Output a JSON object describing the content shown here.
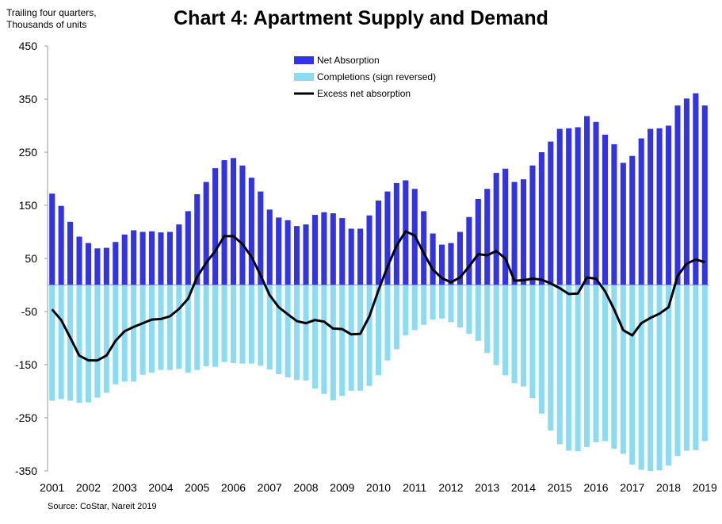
{
  "chart_data": {
    "type": "bar",
    "title": "Chart 4: Apartment Supply and Demand",
    "ylabel_line1": "Trailing four quarters,",
    "ylabel_line2": "Thousands of units",
    "source": "Source: CoStar, Nareit 2019",
    "ylim": [
      -350,
      450
    ],
    "yticks": [
      450,
      350,
      250,
      150,
      50,
      -50,
      -150,
      -250,
      -350
    ],
    "xticks": [
      "2001",
      "2002",
      "2003",
      "2004",
      "2005",
      "2006",
      "2007",
      "2008",
      "2009",
      "2010",
      "2011",
      "2012",
      "2013",
      "2014",
      "2015",
      "2016",
      "2017",
      "2018",
      "2019"
    ],
    "grid": false,
    "legend_position": "top-center",
    "colors": {
      "net_absorption": "#3232E6",
      "completions": "#8ADCF2",
      "excess": "#000000"
    },
    "x": [
      "2001Q1",
      "2001Q2",
      "2001Q3",
      "2001Q4",
      "2002Q1",
      "2002Q2",
      "2002Q3",
      "2002Q4",
      "2003Q1",
      "2003Q2",
      "2003Q3",
      "2003Q4",
      "2004Q1",
      "2004Q2",
      "2004Q3",
      "2004Q4",
      "2005Q1",
      "2005Q2",
      "2005Q3",
      "2005Q4",
      "2006Q1",
      "2006Q2",
      "2006Q3",
      "2006Q4",
      "2007Q1",
      "2007Q2",
      "2007Q3",
      "2007Q4",
      "2008Q1",
      "2008Q2",
      "2008Q3",
      "2008Q4",
      "2009Q1",
      "2009Q2",
      "2009Q3",
      "2009Q4",
      "2010Q1",
      "2010Q2",
      "2010Q3",
      "2010Q4",
      "2011Q1",
      "2011Q2",
      "2011Q3",
      "2011Q4",
      "2012Q1",
      "2012Q2",
      "2012Q3",
      "2012Q4",
      "2013Q1",
      "2013Q2",
      "2013Q3",
      "2013Q4",
      "2014Q1",
      "2014Q2",
      "2014Q3",
      "2014Q4",
      "2015Q1",
      "2015Q2",
      "2015Q3",
      "2015Q4",
      "2016Q1",
      "2016Q2",
      "2016Q3",
      "2016Q4",
      "2017Q1",
      "2017Q2",
      "2017Q3",
      "2017Q4",
      "2018Q1",
      "2018Q2",
      "2018Q3",
      "2018Q4",
      "2019Q1"
    ],
    "series": [
      {
        "name": "Net Absorption",
        "values": [
          172,
          149,
          119,
          91,
          79,
          69,
          70,
          81,
          95,
          103,
          100,
          101,
          99,
          100,
          114,
          139,
          171,
          194,
          220,
          235,
          239,
          225,
          202,
          176,
          142,
          127,
          122,
          111,
          114,
          132,
          137,
          135,
          126,
          106,
          106,
          131,
          159,
          176,
          192,
          197,
          181,
          139,
          97,
          76,
          79,
          100,
          128,
          162,
          181,
          211,
          219,
          194,
          199,
          225,
          250,
          270,
          294,
          295,
          297,
          318,
          307,
          283,
          265,
          230,
          243,
          276,
          294,
          295,
          300,
          338,
          351,
          361,
          338
        ]
      },
      {
        "name": "Completions (sign reversed)",
        "values": [
          -218,
          -215,
          -218,
          -222,
          -221,
          -212,
          -203,
          -187,
          -182,
          -182,
          -169,
          -165,
          -160,
          -160,
          -158,
          -165,
          -160,
          -153,
          -154,
          -145,
          -147,
          -148,
          -148,
          -152,
          -159,
          -168,
          -174,
          -179,
          -180,
          -195,
          -205,
          -217,
          -209,
          -199,
          -199,
          -190,
          -170,
          -142,
          -121,
          -95,
          -85,
          -75,
          -65,
          -63,
          -70,
          -80,
          -92,
          -105,
          -128,
          -151,
          -170,
          -185,
          -191,
          -213,
          -242,
          -274,
          -300,
          -312,
          -313,
          -305,
          -296,
          -294,
          -308,
          -318,
          -338,
          -348,
          -350,
          -349,
          -340,
          -322,
          -312,
          -311,
          -294
        ]
      },
      {
        "name": "Excess net absorption",
        "values": [
          -46,
          -66,
          -99,
          -133,
          -142,
          -142,
          -133,
          -105,
          -87,
          -79,
          -72,
          -65,
          -64,
          -59,
          -45,
          -26,
          15,
          42,
          64,
          92,
          92,
          77,
          53,
          18,
          -19,
          -42,
          -55,
          -68,
          -72,
          -66,
          -69,
          -82,
          -83,
          -93,
          -92,
          -59,
          -10,
          34,
          74,
          101,
          93,
          60,
          29,
          13,
          5,
          14,
          35,
          58,
          56,
          64,
          50,
          8,
          9,
          12,
          10,
          3,
          -6,
          -17,
          -16,
          14,
          12,
          -12,
          -46,
          -85,
          -95,
          -72,
          -62,
          -54,
          -42,
          17,
          40,
          48,
          43
        ]
      }
    ]
  }
}
